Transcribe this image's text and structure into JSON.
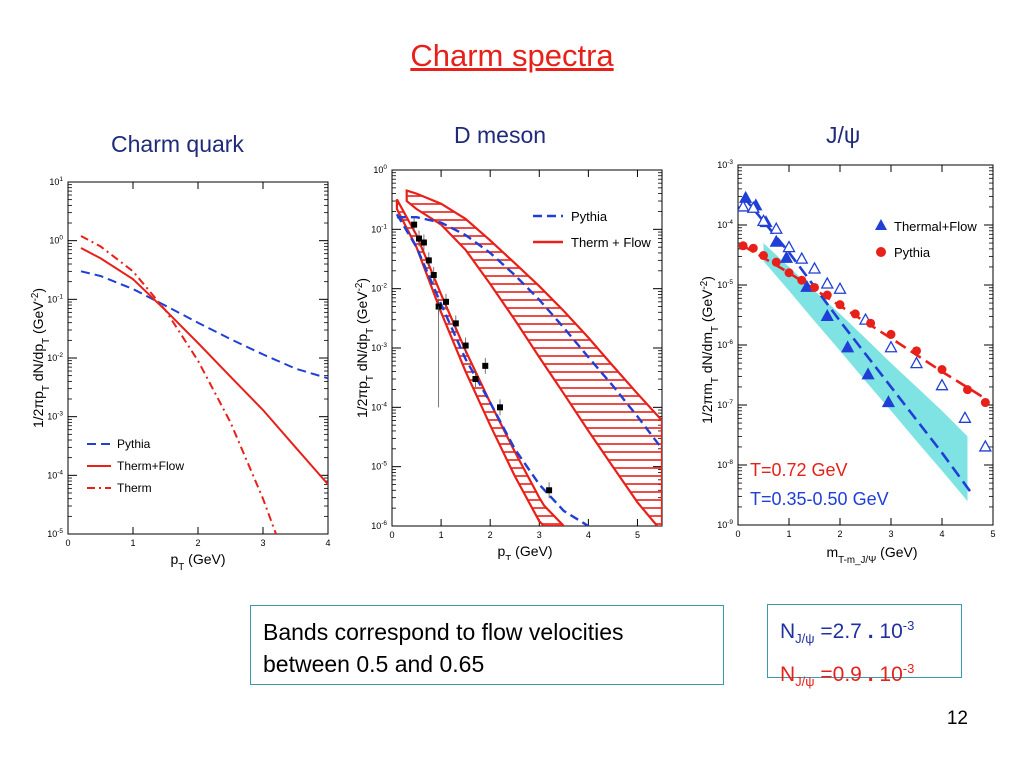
{
  "slide": {
    "title": "Charm spectra",
    "page_number": "12",
    "note_text": "Bands correspond to flow velocities between 0.5 and 0.65",
    "n_jpsi": [
      {
        "N": "N",
        "sub": "J/ψ",
        "value": "=2.7",
        "dot": ".",
        "mant": "10",
        "exp": "-3",
        "color": "#2030a0"
      },
      {
        "N": "N",
        "sub": "J/ψ",
        "value": "=0.9",
        "dot": ".",
        "mant": "10",
        "exp": "-3",
        "color": "#e8201a"
      }
    ]
  },
  "colors": {
    "red": "#e8201a",
    "blue": "#1f3fd6",
    "cyan": "#7fe3e3",
    "navy": "#1f2a7a",
    "frame": "#3a9aa8"
  },
  "chart_data": [
    {
      "type": "line",
      "title": "Charm quark",
      "xlabel": "p_T (GeV)",
      "ylabel": "1/2πp_T dN/dp_T  (GeV^-2)",
      "xlim": [
        0,
        4
      ],
      "ylim_log10": [
        -5,
        1
      ],
      "xticks": [
        0,
        1,
        2,
        3,
        4
      ],
      "yticks": [
        {
          "b": "10",
          "e": "1"
        },
        {
          "b": "10",
          "e": "0"
        },
        {
          "b": "10",
          "e": "-1"
        },
        {
          "b": "10",
          "e": "-2"
        },
        {
          "b": "10",
          "e": "-3"
        },
        {
          "b": "10",
          "e": "-4"
        },
        {
          "b": "10",
          "e": "-5"
        }
      ],
      "legend": {
        "placement": "bottom-left"
      },
      "series": [
        {
          "name": "Pythia",
          "color": "#1f3fd6",
          "style": "dashed",
          "x": [
            0.2,
            0.5,
            1.0,
            1.5,
            2.0,
            2.5,
            3.0,
            3.5,
            4.0
          ],
          "y": [
            0.3,
            0.25,
            0.15,
            0.078,
            0.04,
            0.021,
            0.0115,
            0.0066,
            0.0045
          ]
        },
        {
          "name": "Therm+Flow",
          "color": "#e8201a",
          "style": "solid",
          "x": [
            0.2,
            0.5,
            1.0,
            1.5,
            2.0,
            2.5,
            3.0,
            3.5,
            4.0
          ],
          "y": [
            0.75,
            0.5,
            0.22,
            0.065,
            0.018,
            0.0048,
            0.0013,
            0.0003,
            7e-05
          ]
        },
        {
          "name": "Therm",
          "color": "#e8201a",
          "style": "dashdot",
          "x": [
            0.2,
            0.5,
            1.0,
            1.5,
            2.0,
            2.5,
            3.0,
            3.2
          ],
          "y": [
            1.2,
            0.8,
            0.3,
            0.065,
            0.009,
            0.0008,
            4e-05,
            1e-05
          ]
        }
      ]
    },
    {
      "type": "line",
      "title": "D meson",
      "xlabel": "p_T (GeV)",
      "ylabel": "1/2πp_T dN/dp_T  (GeV^-2)",
      "xlim": [
        0,
        5.5
      ],
      "ylim_log10": [
        -6,
        0
      ],
      "xticks": [
        0,
        1,
        2,
        3,
        4,
        5
      ],
      "yticks": [
        {
          "b": "10",
          "e": "0"
        },
        {
          "b": "10",
          "e": "-1"
        },
        {
          "b": "10",
          "e": "-2"
        },
        {
          "b": "10",
          "e": "-3"
        },
        {
          "b": "10",
          "e": "-4"
        },
        {
          "b": "10",
          "e": "-5"
        },
        {
          "b": "10",
          "e": "-6"
        }
      ],
      "legend": {
        "placement": "top-right"
      },
      "series": [
        {
          "name": "Pythia",
          "color": "#1f3fd6",
          "style": "dashed",
          "x": [
            0.1,
            0.5,
            1.0,
            1.5,
            2.0,
            2.5,
            3.0,
            3.5,
            4.0,
            4.5,
            5.0,
            5.5
          ],
          "y": [
            0.16,
            0.16,
            0.13,
            0.08,
            0.04,
            0.017,
            0.0065,
            0.0022,
            0.0007,
            0.00023,
            7e-05,
            2e-05
          ]
        },
        {
          "name": "Pythia",
          "color": "#1f3fd6",
          "style": "dashed",
          "x": [
            0.1,
            0.5,
            1.0,
            1.5,
            2.0,
            2.5,
            3.0,
            3.5,
            4.0
          ],
          "y": [
            0.18,
            0.05,
            0.0055,
            0.00065,
            0.00012,
            2e-05,
            5e-06,
            1.8e-06,
            1e-06
          ]
        }
      ],
      "bands": [
        {
          "name": "Therm + Flow",
          "color": "#e8201a",
          "x": [
            0.3,
            0.5,
            1.0,
            1.5,
            2.0,
            2.5,
            3.0,
            3.5,
            4.0,
            4.5,
            5.0,
            5.5
          ],
          "y_low": [
            0.3,
            0.22,
            0.12,
            0.045,
            0.012,
            0.003,
            0.0007,
            0.00017,
            4e-05,
            1e-05,
            2.5e-06,
            8e-07
          ],
          "y_high": [
            0.45,
            0.4,
            0.27,
            0.15,
            0.065,
            0.027,
            0.011,
            0.0042,
            0.0015,
            0.0005,
            0.00017,
            6e-05
          ]
        },
        {
          "name": "Therm + Flow",
          "color": "#e8201a",
          "x": [
            0.1,
            0.5,
            1.0,
            1.5,
            2.0,
            2.5,
            3.0,
            3.1,
            3.5
          ],
          "y_low": [
            0.22,
            0.05,
            0.004,
            0.0004,
            5e-05,
            7e-06,
            1.2e-06,
            1e-06,
            1e-06
          ],
          "y_high": [
            0.32,
            0.08,
            0.008,
            0.0009,
            0.00012,
            1.8e-05,
            3e-06,
            2.2e-06,
            1e-06
          ]
        }
      ],
      "data_points": {
        "x": [
          0.45,
          0.55,
          0.65,
          0.75,
          0.85,
          0.95,
          1.1,
          1.3,
          1.5,
          1.7,
          1.9,
          2.2,
          3.2
        ],
        "y": [
          0.12,
          0.07,
          0.06,
          0.03,
          0.017,
          0.005,
          0.006,
          0.0026,
          0.0011,
          0.0003,
          0.0005,
          0.0001,
          4e-06
        ]
      }
    },
    {
      "type": "scatter",
      "title": "J/ψ",
      "xlabel": "m_T-m_J/Ψ (GeV)",
      "ylabel": "1/2πm_T dN/dm_T  (GeV^-2)",
      "xlim": [
        0,
        5
      ],
      "ylim_log10": [
        -9,
        -3
      ],
      "xticks": [
        0,
        1,
        2,
        3,
        4,
        5
      ],
      "yticks": [
        {
          "b": "10",
          "e": "-3"
        },
        {
          "b": "10",
          "e": "-4"
        },
        {
          "b": "10",
          "e": "-5"
        },
        {
          "b": "10",
          "e": "-6"
        },
        {
          "b": "10",
          "e": "-7"
        },
        {
          "b": "10",
          "e": "-8"
        },
        {
          "b": "10",
          "e": "-9"
        }
      ],
      "legend": {
        "placement": "top-right"
      },
      "band": {
        "color": "#7fe3e3",
        "x": [
          0.5,
          1.0,
          1.5,
          2.0,
          2.5,
          3.0,
          3.5,
          4.0,
          4.5
        ],
        "y_low": [
          2.5e-05,
          8e-06,
          2.5e-06,
          8e-07,
          2.5e-07,
          8e-08,
          2.5e-08,
          8e-09,
          2.5e-09
        ],
        "y_high": [
          5e-05,
          2e-05,
          8e-06,
          3.3e-06,
          1.3e-06,
          5e-07,
          2e-07,
          8e-08,
          3e-08
        ]
      },
      "lines": [
        {
          "color": "#1f3fd6",
          "style": "dashed",
          "x": [
            0.1,
            1.0,
            2.0,
            3.0,
            4.0,
            4.6
          ],
          "y": [
            0.0003,
            3.5e-05,
            2.5e-06,
            2e-07,
            1.6e-08,
            3.2e-09
          ]
        },
        {
          "color": "#e8201a",
          "style": "dashed",
          "x": [
            0.1,
            1.0,
            2.0,
            3.0,
            4.0,
            4.9
          ],
          "y": [
            4.5e-05,
            1.6e-05,
            4.5e-06,
            1.3e-06,
            3.6e-07,
            1.2e-07
          ]
        }
      ],
      "series": [
        {
          "name": "Thermal+Flow",
          "color": "#1f3fd6",
          "marker": "triangle",
          "x": [
            0.15,
            0.35,
            0.55,
            0.75,
            0.95,
            1.35,
            1.75,
            2.15,
            2.55,
            2.95
          ],
          "y": [
            0.00028,
            0.00021,
            0.00011,
            5.2e-05,
            2.8e-05,
            9.2e-06,
            3e-06,
            9e-07,
            3.2e-07,
            1.1e-07
          ]
        },
        {
          "name": "",
          "color": "#1f3fd6",
          "marker": "triangle-open",
          "x": [
            0.1,
            0.3,
            0.5,
            0.75,
            1.0,
            1.25,
            1.5,
            1.75,
            2.0,
            2.5,
            3.0,
            3.5,
            4.0,
            4.45,
            4.85
          ],
          "y": [
            0.0002,
            0.00019,
            0.000115,
            8.5e-05,
            4.2e-05,
            2.7e-05,
            1.85e-05,
            1.04e-05,
            8.5e-06,
            2.6e-06,
            9e-07,
            4.9e-07,
            2.1e-07,
            6e-08,
            2e-08
          ]
        },
        {
          "name": "Pythia",
          "color": "#e8201a",
          "marker": "circle",
          "x": [
            0.1,
            0.3,
            0.5,
            0.75,
            1.0,
            1.25,
            1.5,
            1.75,
            2.0,
            2.3,
            2.6,
            3.0,
            3.5,
            4.0,
            4.5,
            4.85
          ],
          "y": [
            4.5e-05,
            4.1e-05,
            3.1e-05,
            2.4e-05,
            1.6e-05,
            1.2e-05,
            9.1e-06,
            6.8e-06,
            4.7e-06,
            3.3e-06,
            2.3e-06,
            1.5e-06,
            8e-07,
            3.9e-07,
            1.8e-07,
            1.1e-07
          ]
        }
      ],
      "annotations": [
        {
          "text": "T=0.72 GeV",
          "color": "#e8201a"
        },
        {
          "text": "T=0.35-0.50 GeV",
          "color": "#1f3fd6"
        }
      ]
    }
  ]
}
